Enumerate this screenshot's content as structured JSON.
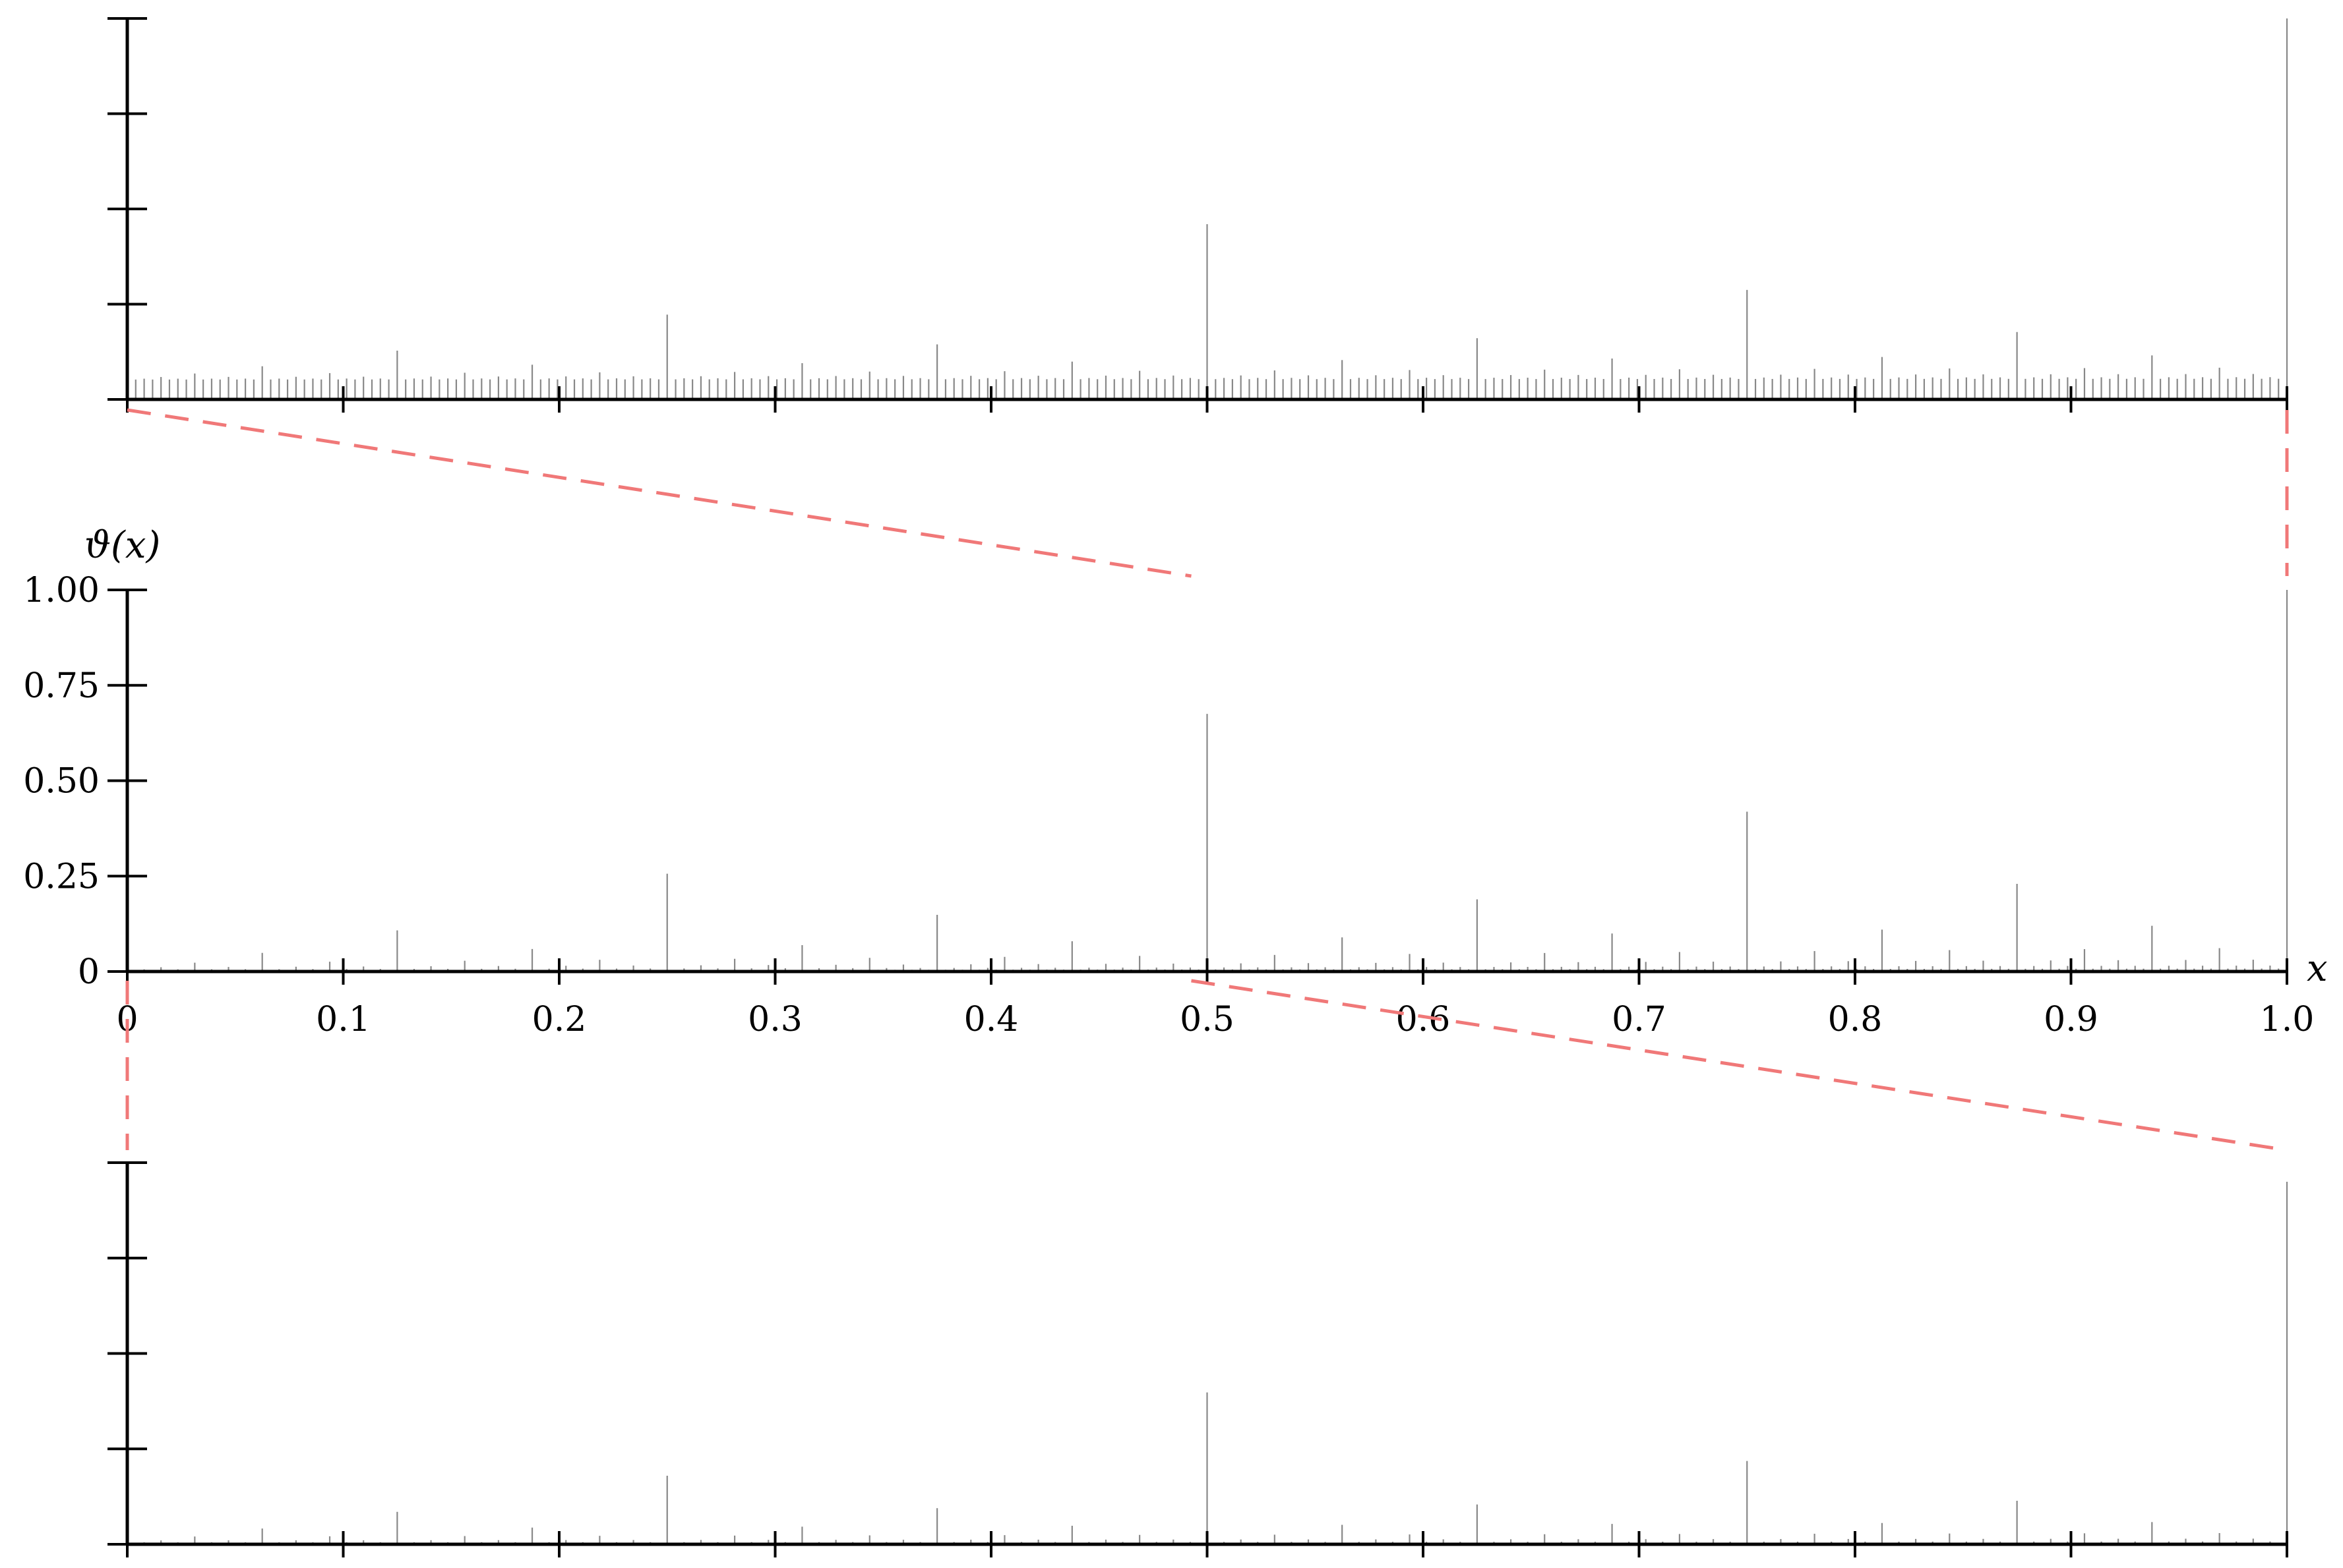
{
  "chart_data": [
    {
      "panel": "top",
      "type": "bar",
      "x_range": [
        0,
        1
      ],
      "ylim": [
        0,
        1
      ],
      "bar_count": 256,
      "note_visible": "vertical rule stems, zoom of region x in [0, 0.5] of middle panel",
      "x_tick_values": [
        0,
        0.1,
        0.2,
        0.3,
        0.4,
        0.5,
        0.6,
        0.7,
        0.8,
        0.9,
        1.0
      ],
      "y_tick_values": [
        0,
        0.25,
        0.5,
        0.75,
        1.0
      ],
      "tick_labels_shown": false
    },
    {
      "panel": "middle",
      "type": "bar",
      "ylabel": "ϑ(x)",
      "xlabel": "x",
      "x_range": [
        0,
        1
      ],
      "ylim": [
        0,
        1
      ],
      "bar_count": 256,
      "x_tick_labels": [
        "0",
        "0.1",
        "0.2",
        "0.3",
        "0.4",
        "0.5",
        "0.6",
        "0.7",
        "0.8",
        "0.9",
        "1.0"
      ],
      "x_tick_values": [
        0,
        0.1,
        0.2,
        0.3,
        0.4,
        0.5,
        0.6,
        0.7,
        0.8,
        0.9,
        1.0
      ],
      "y_tick_labels": [
        "0",
        "0.25",
        "0.50",
        "0.75",
        "1.00"
      ],
      "y_tick_values": [
        0,
        0.25,
        0.5,
        0.75,
        1.0
      ]
    },
    {
      "panel": "bottom",
      "type": "bar",
      "x_range": [
        0,
        1
      ],
      "ylim": [
        0,
        1
      ],
      "bar_count": 256,
      "zoom_of": "middle panel x in [0.5, 1.0]",
      "x_tick_values": [
        0,
        0.1,
        0.2,
        0.3,
        0.4,
        0.5,
        0.6,
        0.7,
        0.8,
        0.9,
        1.0
      ],
      "y_tick_values": [
        0,
        0.25,
        0.5,
        0.75,
        1.0
      ],
      "tick_labels_shown": false
    }
  ],
  "colors": {
    "axis": "#000000",
    "bars": "#888888",
    "zoom_lines": "#f07878"
  }
}
